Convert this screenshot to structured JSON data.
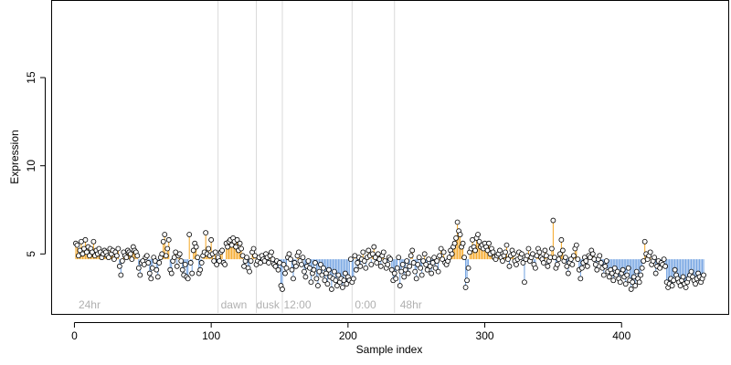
{
  "chart_data": {
    "type": "scatter",
    "title": "",
    "xlabel": "Sample index",
    "ylabel": "Expression",
    "xlim": [
      -17,
      478
    ],
    "ylim": [
      1.6,
      19.4
    ],
    "x_ticks": [
      0,
      100,
      200,
      300,
      400
    ],
    "y_ticks": [
      5,
      10,
      15
    ],
    "grid": false,
    "baseline_note": "stems drawn from each point to a reference value ≈ 4.7",
    "reference_value": 4.7,
    "colors": {
      "above_reference": "#f5a623",
      "below_reference": "#6d9fe0",
      "point_fill": "#ffffff",
      "point_edge": "#000000",
      "separator": "#d9d9d9",
      "section_label": "#b0b0b0"
    },
    "separators_x": [
      105,
      133,
      152,
      203,
      234
    ],
    "section_labels": [
      {
        "text": "24hr",
        "x": 3
      },
      {
        "text": "dawn",
        "x": 107
      },
      {
        "text": "dusk",
        "x": 133
      },
      {
        "text": "12:00",
        "x": 153
      },
      {
        "text": "0:00",
        "x": 205
      },
      {
        "text": "48hr",
        "x": 238
      }
    ],
    "series": [
      {
        "segments": [
          {
            "x_start": 1,
            "x_end": 32,
            "values": [
              5.6,
              5.5,
              4.9,
              5.2,
              5.7,
              5.0,
              5.3,
              5.8,
              5.1,
              5.4,
              4.9,
              5.3,
              5.1,
              5.7,
              4.9,
              5.2,
              5.0,
              5.3,
              5.1,
              4.8,
              5.0,
              5.2,
              5.1,
              4.9,
              4.8,
              5.3,
              5.0,
              5.2,
              4.7,
              5.1,
              4.9,
              5.3
            ]
          },
          {
            "x_start": 33,
            "x_end": 64,
            "values": [
              4.3,
              3.8,
              4.6,
              5.1,
              4.9,
              4.8,
              5.2,
              5.1,
              5.0,
              4.7,
              5.4,
              5.2,
              5.1,
              4.9,
              4.2,
              3.8,
              4.5,
              4.6,
              4.4,
              4.8,
              4.9,
              4.5,
              3.9,
              3.6,
              4.2,
              4.8,
              4.6,
              4.1,
              3.7,
              4.5,
              4.8,
              5.0
            ]
          },
          {
            "x_start": 65,
            "x_end": 104,
            "values": [
              5.7,
              6.1,
              4.9,
              5.3,
              5.8,
              4.1,
              3.9,
              4.6,
              4.8,
              5.1,
              4.3,
              4.9,
              5.0,
              4.6,
              4.1,
              3.8,
              4.4,
              3.7,
              3.6,
              6.1,
              4.5,
              3.9,
              5.2,
              5.6,
              5.4,
              4.8,
              3.9,
              4.1,
              4.5,
              4.9,
              5.1,
              6.2,
              5.0,
              5.3,
              4.9,
              5.8,
              5.0,
              4.6,
              5.1,
              4.4
            ]
          },
          {
            "x_start": 105,
            "x_end": 132,
            "values": [
              4.8,
              4.6,
              5.1,
              5.2,
              4.5,
              4.4,
              5.6,
              5.4,
              5.7,
              5.8,
              5.5,
              5.9,
              5.7,
              5.4,
              5.8,
              5.2,
              5.6,
              5.3,
              4.9,
              4.3,
              4.6,
              4.8,
              4.2,
              4.0,
              4.6,
              5.1,
              5.3,
              4.9
            ]
          },
          {
            "x_start": 133,
            "x_end": 152,
            "values": [
              4.4,
              4.6,
              4.8,
              4.5,
              4.9,
              4.7,
              4.6,
              5.0,
              4.8,
              4.5,
              4.9,
              5.1,
              4.7,
              4.4,
              4.3,
              4.6,
              4.1,
              4.5,
              3.2,
              3.0
            ]
          },
          {
            "x_start": 153,
            "x_end": 202,
            "values": [
              4.4,
              3.9,
              4.2,
              4.8,
              5.0,
              4.7,
              4.1,
              3.6,
              4.5,
              4.3,
              4.9,
              5.1,
              4.6,
              4.4,
              4.8,
              4.0,
              3.7,
              4.3,
              4.6,
              4.2,
              3.4,
              3.9,
              4.1,
              4.5,
              3.6,
              3.2,
              4.0,
              4.4,
              3.8,
              4.2,
              3.5,
              3.9,
              3.3,
              4.1,
              3.7,
              3.0,
              3.6,
              4.0,
              3.5,
              3.2,
              3.8,
              3.4,
              3.6,
              3.1,
              3.5,
              3.9,
              3.3,
              3.7,
              3.5,
              4.7
            ]
          },
          {
            "x_start": 203,
            "x_end": 233,
            "values": [
              3.4,
              3.6,
              4.9,
              4.1,
              4.5,
              4.8,
              4.3,
              4.7,
              5.1,
              4.6,
              4.2,
              4.8,
              5.2,
              4.9,
              4.4,
              5.0,
              5.4,
              4.8,
              4.5,
              5.0,
              4.7,
              4.3,
              4.9,
              5.1,
              4.6,
              4.2,
              4.4,
              4.8,
              4.7,
              4.1,
              3.5
            ]
          },
          {
            "x_start": 234,
            "x_end": 277,
            "values": [
              3.9,
              3.6,
              4.2,
              4.8,
              3.2,
              4.0,
              4.4,
              3.7,
              4.1,
              4.6,
              3.9,
              4.3,
              4.9,
              5.2,
              4.5,
              4.0,
              3.6,
              4.4,
              4.8,
              4.2,
              3.8,
              4.6,
              5.0,
              4.4,
              4.1,
              4.7,
              4.3,
              3.9,
              4.5,
              4.8,
              4.2,
              4.6,
              4.0,
              4.9,
              5.3,
              4.7,
              5.1,
              4.5,
              4.4,
              4.6,
              4.8,
              5.2,
              5.0,
              5.4
            ]
          },
          {
            "x_start": 278,
            "x_end": 330,
            "values": [
              5.6,
              5.9,
              6.8,
              6.3,
              6.1,
              5.4,
              5.6,
              4.8,
              3.1,
              3.5,
              4.2,
              5.1,
              5.3,
              5.8,
              5.4,
              5.2,
              5.9,
              6.1,
              5.7,
              5.4,
              5.5,
              5.3,
              5.6,
              5.4,
              5.2,
              5.6,
              5.0,
              5.3,
              5.1,
              4.8,
              4.7,
              4.9,
              5.0,
              5.2,
              4.8,
              4.6,
              4.9,
              5.1,
              5.5,
              4.7,
              4.3,
              4.9,
              5.2,
              5.0,
              4.6,
              4.4,
              4.7,
              5.1,
              4.8,
              5.0,
              4.5,
              3.4,
              4.7
            ]
          },
          {
            "x_start": 331,
            "x_end": 400,
            "values": [
              4.9,
              5.3,
              4.6,
              4.8,
              5.0,
              4.4,
              4.2,
              4.9,
              5.3,
              5.1,
              4.8,
              4.7,
              4.5,
              5.2,
              4.9,
              4.3,
              4.6,
              4.8,
              5.3,
              6.9,
              4.8,
              4.2,
              4.4,
              4.7,
              5.0,
              5.8,
              5.2,
              4.6,
              4.8,
              4.3,
              3.9,
              4.5,
              4.7,
              4.4,
              4.9,
              5.3,
              5.5,
              4.7,
              4.1,
              3.6,
              4.2,
              4.5,
              4.8,
              4.6,
              4.3,
              4.9,
              4.8,
              5.2,
              5.0,
              4.7,
              4.4,
              4.1,
              4.7,
              4.9,
              4.5,
              4.2,
              3.8,
              4.3,
              4.6,
              4.0,
              3.7,
              4.1,
              3.9,
              3.5,
              4.2,
              3.8,
              4.0,
              3.6,
              3.4,
              3.9
            ]
          },
          {
            "x_start": 401,
            "x_end": 460,
            "values": [
              4.1,
              3.7,
              3.3,
              3.8,
              4.2,
              3.5,
              3.0,
              3.4,
              3.7,
              3.2,
              4.0,
              3.6,
              3.4,
              3.8,
              4.2,
              4.6,
              5.7,
              5.0,
              4.7,
              4.9,
              5.1,
              4.4,
              4.6,
              4.8,
              3.9,
              4.3,
              4.6,
              4.2,
              4.5,
              4.4,
              4.7,
              4.3,
              3.4,
              3.1,
              3.3,
              3.6,
              3.2,
              3.5,
              4.1,
              3.8,
              3.6,
              3.4,
              3.2,
              3.5,
              3.7,
              3.3,
              3.1,
              3.4,
              3.6,
              3.8,
              4.0,
              3.7,
              3.5,
              3.3,
              3.6,
              3.9,
              3.7,
              3.4,
              3.6,
              3.8
            ]
          }
        ]
      }
    ]
  }
}
